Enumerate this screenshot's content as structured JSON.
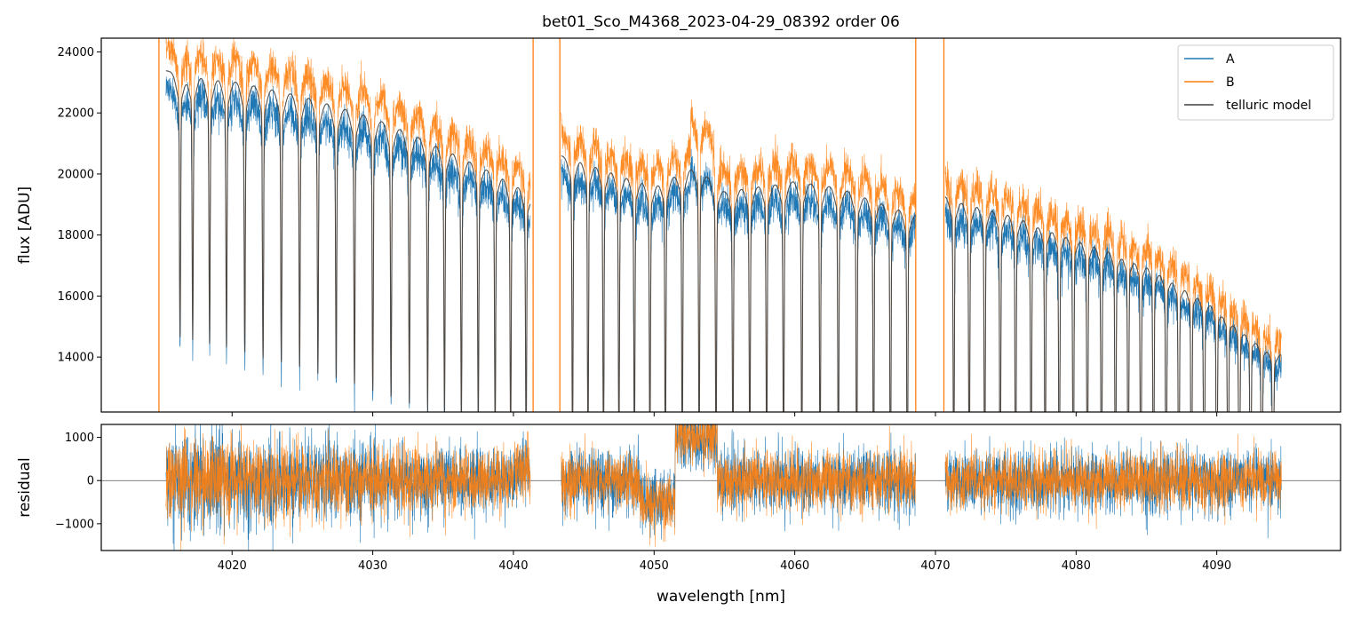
{
  "chart_data": [
    {
      "type": "line",
      "title": "bet01_Sco_M4368_2023-04-29_08392  order 06",
      "xlabel": "",
      "ylabel": "flux [ADU]",
      "xlim": [
        4010.7,
        4098.8
      ],
      "ylim": [
        12200,
        24450
      ],
      "yticks": [
        14000,
        16000,
        18000,
        20000,
        22000,
        24000
      ],
      "ytick_labels": [
        "14000",
        "16000",
        "18000",
        "20000",
        "22000",
        "24000"
      ],
      "segments": [
        [
          4015.3,
          4041.2
        ],
        [
          4043.4,
          4068.6
        ],
        [
          4070.7,
          4094.6
        ]
      ],
      "spikes": [
        4014.8,
        4041.4,
        4043.3,
        4068.6,
        4070.6
      ],
      "continuum": {
        "x": [
          4015,
          4020,
          4025,
          4030,
          4035,
          4040,
          4041.2,
          4043.4,
          4045,
          4048,
          4050,
          4053,
          4055,
          4058,
          4060,
          4063,
          4065,
          4068.6,
          4070.7,
          4075,
          4080,
          4085,
          4090,
          4094.6
        ],
        "y": [
          23400,
          23100,
          22600,
          21900,
          20900,
          19800,
          19400,
          20600,
          20500,
          20000,
          19700,
          20300,
          19500,
          19700,
          19800,
          19600,
          19300,
          18700,
          19300,
          18800,
          18000,
          17200,
          15800,
          14100
        ]
      },
      "absorption_lines": [
        4016.3,
        4017.2,
        4018.4,
        4019.6,
        4020.9,
        4022.2,
        4023.5,
        4024.8,
        4026.1,
        4027.4,
        4028.7,
        4030.0,
        4031.3,
        4032.6,
        4033.9,
        4035.1,
        4036.3,
        4037.5,
        4038.7,
        4039.8,
        4040.9,
        4044.2,
        4045.3,
        4046.4,
        4047.5,
        4048.6,
        4049.7,
        4050.8,
        4052.0,
        4053.2,
        4054.4,
        4055.6,
        4056.8,
        4058.0,
        4059.2,
        4060.5,
        4061.8,
        4063.1,
        4064.4,
        4065.6,
        4066.8,
        4068.0,
        4071.3,
        4072.4,
        4073.5,
        4074.6,
        4075.7,
        4076.8,
        4077.8,
        4078.8,
        4079.8,
        4080.8,
        4081.8,
        4082.8,
        4083.7,
        4084.6,
        4085.5,
        4086.4,
        4087.3,
        4088.2,
        4089.1,
        4090.0,
        4090.8,
        4091.6,
        4092.4,
        4093.2,
        4094.0
      ],
      "series": [
        {
          "name": "A",
          "color": "#1f77b4"
        },
        {
          "name": "B",
          "color": "#ff7f0e"
        },
        {
          "name": "telluric model",
          "color": "#404040"
        }
      ],
      "legend_position": "top-right"
    },
    {
      "type": "line",
      "title": "",
      "xlabel": "wavelength [nm]",
      "ylabel": "residual",
      "xlim": [
        4010.7,
        4098.8
      ],
      "ylim": [
        -1620,
        1300
      ],
      "xticks": [
        4020,
        4030,
        4040,
        4050,
        4060,
        4070,
        4080,
        4090
      ],
      "xtick_labels": [
        "4020",
        "4030",
        "4040",
        "4050",
        "4060",
        "4070",
        "4080",
        "4090"
      ],
      "yticks": [
        -1000,
        0,
        1000
      ],
      "ytick_labels": [
        "−1000",
        "0",
        "1000"
      ],
      "zero_line": 0,
      "series": [
        {
          "name": "A",
          "color": "#1f77b4"
        },
        {
          "name": "B",
          "color": "#ff7f0e"
        }
      ]
    }
  ]
}
